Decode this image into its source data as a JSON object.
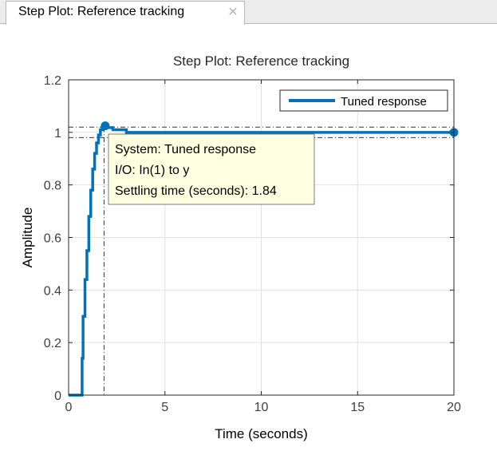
{
  "tab": {
    "label": "Step Plot: Reference tracking",
    "close_glyph": "✕",
    "close_icon": "close-icon"
  },
  "chart_data": {
    "type": "line",
    "title": "Step Plot: Reference tracking",
    "xlabel": "Time (seconds)",
    "ylabel": "Amplitude",
    "xlim": [
      0,
      20
    ],
    "ylim": [
      0,
      1.2
    ],
    "xticks": [
      0,
      5,
      10,
      15,
      20
    ],
    "yticks": [
      0,
      0.2,
      0.4,
      0.6,
      0.8,
      1,
      1.2
    ],
    "xtick_labels": [
      "0",
      "5",
      "10",
      "15",
      "20"
    ],
    "ytick_labels": [
      "0",
      "0.2",
      "0.4",
      "0.6",
      "0.8",
      "1",
      "1.2"
    ],
    "grid": true,
    "legend": {
      "placement": "top-right",
      "entries": [
        "Tuned response"
      ]
    },
    "series": [
      {
        "name": "Tuned response",
        "color": "#0072bd",
        "x": [
          0,
          0.7,
          0.7,
          0.75,
          0.75,
          0.85,
          0.85,
          0.95,
          0.95,
          1.05,
          1.05,
          1.15,
          1.15,
          1.25,
          1.25,
          1.35,
          1.35,
          1.45,
          1.45,
          1.55,
          1.55,
          1.65,
          1.65,
          1.75,
          1.75,
          1.85,
          1.85,
          2.0,
          2.0,
          2.3,
          2.3,
          3.0,
          3.0,
          20
        ],
        "y": [
          0,
          0,
          0.14,
          0.14,
          0.3,
          0.3,
          0.44,
          0.44,
          0.55,
          0.55,
          0.68,
          0.68,
          0.78,
          0.78,
          0.86,
          0.86,
          0.92,
          0.92,
          0.96,
          0.96,
          0.99,
          0.99,
          1.01,
          1.01,
          1.02,
          1.02,
          1.025,
          1.025,
          1.018,
          1.018,
          1.01,
          1.01,
          1.0,
          1.0
        ]
      }
    ],
    "settling_band": [
      0.98,
      1.02
    ],
    "peak_marker": {
      "x": 1.9,
      "y": 1.025
    },
    "end_marker": {
      "x": 20,
      "y": 1.0
    },
    "settling_time": 1.84,
    "datatip": {
      "lines": [
        "System: Tuned response",
        "I/O: In(1) to y",
        "Settling time (seconds): 1.84"
      ],
      "background": "#ffffe1"
    }
  }
}
